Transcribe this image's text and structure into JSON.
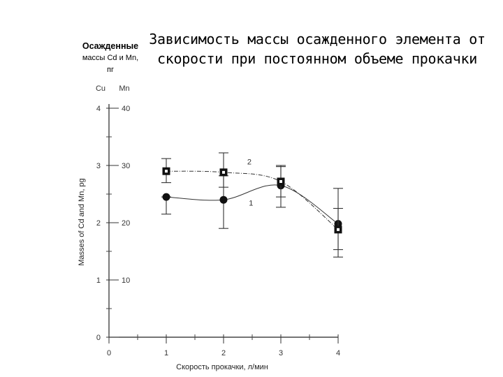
{
  "title": "Зависимость массы осажденного элемента от скорости при постоянном объеме прокачки",
  "y_title": {
    "line1": "Осажденные",
    "line2": "массы Cd и Mn,",
    "line3": "пг"
  },
  "chart_data": {
    "type": "line",
    "xlabel": "Скорость прокачки, л/мин",
    "ylabel_rotated": "Masses of Cd and Mn, pg",
    "xlim": [
      0,
      4
    ],
    "x_ticks": [
      "0",
      "1",
      "2",
      "3",
      "4"
    ],
    "y_axis_cd": {
      "header": "Cu",
      "ylim": [
        0,
        4
      ],
      "ticks": [
        "0",
        "1",
        "2",
        "3",
        "4"
      ],
      "tick_labels": [
        "0",
        "1",
        "2",
        "3",
        "4"
      ]
    },
    "y_axis_mn": {
      "header": "Mn",
      "ylim": [
        0,
        40
      ],
      "ticks": [
        10,
        20,
        30,
        40
      ],
      "tick_labels": [
        "10",
        "20",
        "30",
        "40"
      ]
    },
    "series": [
      {
        "name": "1",
        "marker": "circle",
        "x": [
          1,
          2,
          3,
          4
        ],
        "y": [
          2.45,
          2.4,
          2.65,
          1.98
        ],
        "err_low": [
          2.15,
          1.9,
          2.27,
          1.53
        ],
        "err_high": [
          2.45,
          2.82,
          3.0,
          2.25
        ]
      },
      {
        "name": "2",
        "marker": "square",
        "x": [
          1,
          2,
          3,
          4
        ],
        "y": [
          2.9,
          2.88,
          2.72,
          1.88
        ],
        "err_low": [
          2.7,
          2.62,
          2.45,
          1.4
        ],
        "err_high": [
          3.12,
          3.22,
          2.98,
          2.6
        ]
      }
    ],
    "series_labels": [
      {
        "series": "2",
        "text": "2",
        "x": 2.45,
        "y": 3.02
      },
      {
        "series": "1",
        "text": "1",
        "x": 2.48,
        "y": 2.3
      }
    ],
    "grid": false,
    "legend": "none"
  }
}
